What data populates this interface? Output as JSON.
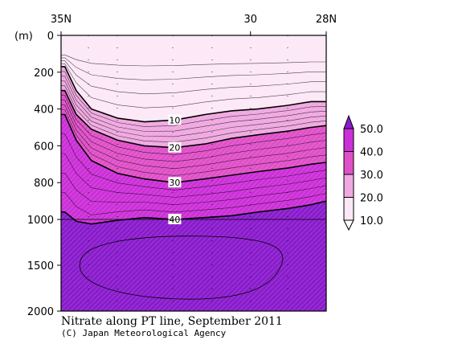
{
  "chart_data": {
    "type": "heatmap",
    "title": "Nitrate along PT line, September 2011",
    "credit": "(C) Japan Meteorological Agency",
    "y_unit_label": "(m)",
    "x_ticks": [
      "35N",
      "30",
      "28N"
    ],
    "x_tick_values": [
      35,
      30,
      28
    ],
    "xlim": [
      35,
      28
    ],
    "y_ticks": [
      "0",
      "200",
      "400",
      "600",
      "800",
      "1000",
      "1500",
      "2000"
    ],
    "y_tick_values": [
      0,
      200,
      400,
      600,
      800,
      1000,
      1500,
      2000
    ],
    "ylim": [
      0,
      2000
    ],
    "y_scale": "piecewise: 0-1000 m expanded, 1000-2000 m compressed",
    "contour_labels": [
      "10",
      "20",
      "30",
      "40"
    ],
    "colorbar": {
      "labels": [
        "50.0",
        "40.0",
        "30.0",
        "20.0",
        "10.0"
      ],
      "values": [
        50,
        40,
        30,
        20,
        10
      ],
      "colors": [
        "#8a1ccc",
        "#cc30d8",
        "#e050c8",
        "#f0a8e0",
        "#fce8f6"
      ]
    },
    "contour_depth_profiles": {
      "note": "approximate depth (m) of each nitrate isoline along section, sampled at latitudes",
      "latitudes": [
        34.9,
        34.6,
        34.2,
        33.5,
        32.8,
        32.0,
        31.2,
        30.5,
        29.8,
        29.0,
        28.4,
        28.0
      ],
      "levels": [
        {
          "value": 10,
          "depths": [
            170,
            300,
            400,
            450,
            470,
            460,
            430,
            410,
            400,
            380,
            360,
            360
          ]
        },
        {
          "value": 20,
          "depths": [
            300,
            430,
            510,
            570,
            600,
            610,
            590,
            560,
            540,
            520,
            500,
            490
          ]
        },
        {
          "value": 30,
          "depths": [
            430,
            570,
            680,
            750,
            780,
            800,
            780,
            760,
            740,
            720,
            700,
            690
          ]
        },
        {
          "value": 40,
          "depths": [
            960,
            1020,
            1050,
            1010,
            990,
            1000,
            990,
            980,
            960,
            940,
            920,
            900
          ]
        }
      ]
    }
  }
}
